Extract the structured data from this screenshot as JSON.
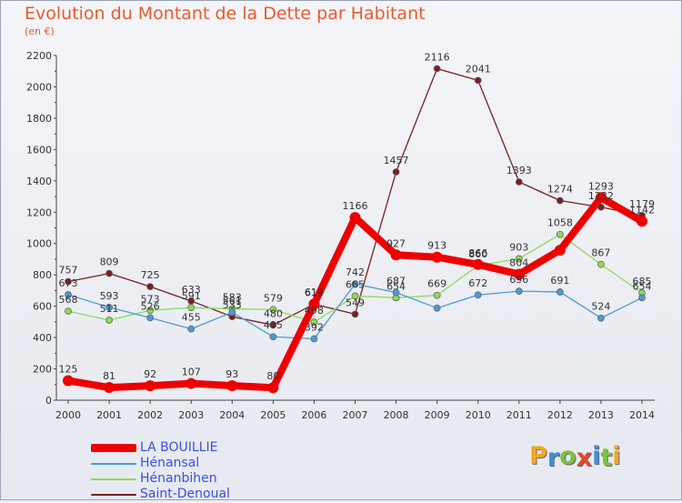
{
  "header": {
    "title": "Evolution du Montant de la Dette par Habitant",
    "subtitle": "(en €)"
  },
  "logo": {
    "letters": [
      "P",
      "r",
      "o",
      "x",
      "i",
      "t",
      "i"
    ],
    "colors": [
      "#f5a623",
      "#3b8fd8",
      "#7bc043",
      "#e8452c",
      "#3b8fd8",
      "#7bc043",
      "#f5a623"
    ]
  },
  "chart_data": {
    "type": "line",
    "title": "Evolution du Montant de la Dette par Habitant",
    "subtitle": "(en €)",
    "x": [
      "2000",
      "2001",
      "2002",
      "2003",
      "2004",
      "2005",
      "2006",
      "2007",
      "2008",
      "2009",
      "2010",
      "2011",
      "2012",
      "2013",
      "2014"
    ],
    "ylim": [
      0,
      2200
    ],
    "yticks": [
      0,
      200,
      400,
      600,
      800,
      1000,
      1200,
      1400,
      1600,
      1800,
      2000,
      2200
    ],
    "grid": false,
    "legend_position": "bottom-left",
    "series": [
      {
        "name": "LA BOUILLIE",
        "color": "#ee0000",
        "values": [
          125,
          81,
          92,
          107,
          93,
          80,
          614,
          1166,
          927,
          913,
          866,
          804,
          958,
          1293,
          1142
        ],
        "labels": [
          "125",
          "81",
          "92",
          "107",
          "93",
          "80",
          "614",
          "1166",
          "927",
          "913",
          "866",
          "804",
          "",
          "1293",
          "1142"
        ]
      },
      {
        "name": "Hénansal",
        "color": "#4a9ad8",
        "values": [
          673,
          593,
          526,
          455,
          561,
          405,
          392,
          742,
          687,
          588,
          672,
          696,
          691,
          524,
          654
        ],
        "labels": [
          "673",
          "593",
          "526",
          "455",
          "561",
          "405",
          "392",
          "742",
          "687",
          "",
          "672",
          "696",
          "691",
          "524",
          "654"
        ]
      },
      {
        "name": "Hénanbihen",
        "color": "#8edb53",
        "values": [
          568,
          511,
          573,
          591,
          583,
          579,
          498,
          665,
          654,
          669,
          860,
          903,
          1058,
          867,
          685
        ],
        "labels": [
          "568",
          "511",
          "573",
          "591",
          "583",
          "579",
          "498",
          "665",
          "654",
          "669",
          "860",
          "903",
          "1058",
          "867",
          "685"
        ]
      },
      {
        "name": "Saint-Denoual",
        "color": "#7a1e1e",
        "values": [
          757,
          809,
          725,
          633,
          533,
          480,
          613,
          549,
          1457,
          2116,
          2041,
          1393,
          1274,
          1232,
          1179
        ],
        "labels": [
          "757",
          "809",
          "725",
          "633",
          "533",
          "480",
          "613",
          "549",
          "1457",
          "2116",
          "2041",
          "1393",
          "1274",
          "1232",
          "1179"
        ]
      }
    ]
  }
}
